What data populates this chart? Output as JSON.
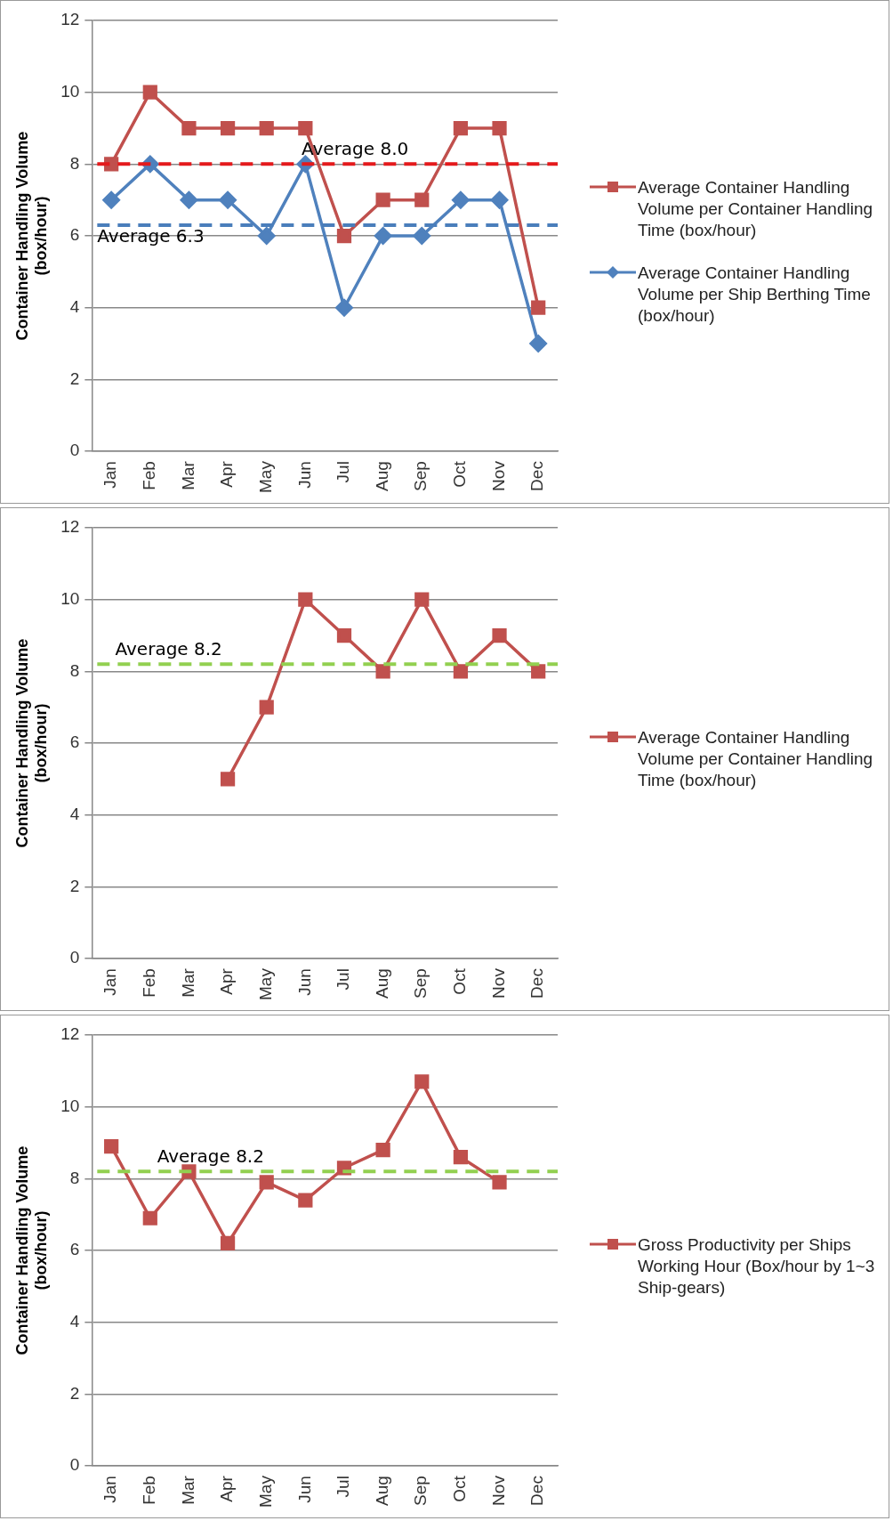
{
  "chart_data": [
    {
      "type": "line",
      "ylabel": "Container Handling Volume\n(box/hour)",
      "categories": [
        "Jan",
        "Feb",
        "Mar",
        "Apr",
        "May",
        "Jun",
        "Jul",
        "Aug",
        "Sep",
        "Oct",
        "Nov",
        "Dec"
      ],
      "series": [
        {
          "name": "Average Container Handling Volume per Container Handling Time (box/hour)",
          "color": "#c0504d",
          "marker": "square",
          "values": [
            8,
            10,
            9,
            9,
            9,
            9,
            6,
            7,
            7,
            9,
            9,
            4
          ]
        },
        {
          "name": "Average Container Handling Volume per Ship Berthing Time (box/hour)",
          "color": "#4f81bd",
          "marker": "diamond",
          "values": [
            7,
            8,
            7,
            7,
            6,
            8,
            4,
            6,
            6,
            7,
            7,
            3
          ]
        }
      ],
      "ref_lines": [
        {
          "axis": "y",
          "value": 8.0,
          "label": "Average 8.0",
          "color": "#e41a1c",
          "line_style": "dashed"
        },
        {
          "axis": "y",
          "value": 6.3,
          "label": "Average 6.3",
          "color": "#4a7ebb",
          "line_style": "dashed"
        }
      ],
      "ylim": [
        0,
        12
      ],
      "yticks": [
        0,
        2,
        4,
        6,
        8,
        10,
        12
      ],
      "grid": "y",
      "legend": "right"
    },
    {
      "type": "line",
      "ylabel": "Container Handling Volume\n(box/hour)",
      "categories": [
        "Jan",
        "Feb",
        "Mar",
        "Apr",
        "May",
        "Jun",
        "Jul",
        "Aug",
        "Sep",
        "Oct",
        "Nov",
        "Dec"
      ],
      "series": [
        {
          "name": "Average Container Handling Volume per Container Handling Time (box/hour)",
          "color": "#c0504d",
          "marker": "square",
          "values": [
            null,
            null,
            null,
            5,
            7,
            10,
            9,
            8,
            10,
            8,
            9,
            8
          ]
        }
      ],
      "ref_lines": [
        {
          "axis": "y",
          "value": 8.2,
          "label": "Average 8.2",
          "color": "#92d050",
          "line_style": "dashed"
        }
      ],
      "ylim": [
        0,
        12
      ],
      "yticks": [
        0,
        2,
        4,
        6,
        8,
        10,
        12
      ],
      "grid": "y",
      "legend": "right"
    },
    {
      "type": "line",
      "ylabel": "Container Handling Volume\n(box/hour)",
      "categories": [
        "Jan",
        "Feb",
        "Mar",
        "Apr",
        "May",
        "Jun",
        "Jul",
        "Aug",
        "Sep",
        "Oct",
        "Nov",
        "Dec"
      ],
      "series": [
        {
          "name": "Gross Productivity per Ships Working Hour (Box/hour by 1~3 Ship-gears)",
          "color": "#c0504d",
          "marker": "square",
          "values": [
            8.9,
            6.9,
            8.2,
            6.2,
            7.9,
            7.4,
            8.3,
            8.8,
            10.7,
            8.6,
            7.9,
            null
          ]
        }
      ],
      "ref_lines": [
        {
          "axis": "y",
          "value": 8.2,
          "label": "Average 8.2",
          "color": "#92d050",
          "line_style": "dashed"
        }
      ],
      "ylim": [
        0,
        12
      ],
      "yticks": [
        0,
        2,
        4,
        6,
        8,
        10,
        12
      ],
      "grid": "y",
      "legend": "right"
    }
  ]
}
